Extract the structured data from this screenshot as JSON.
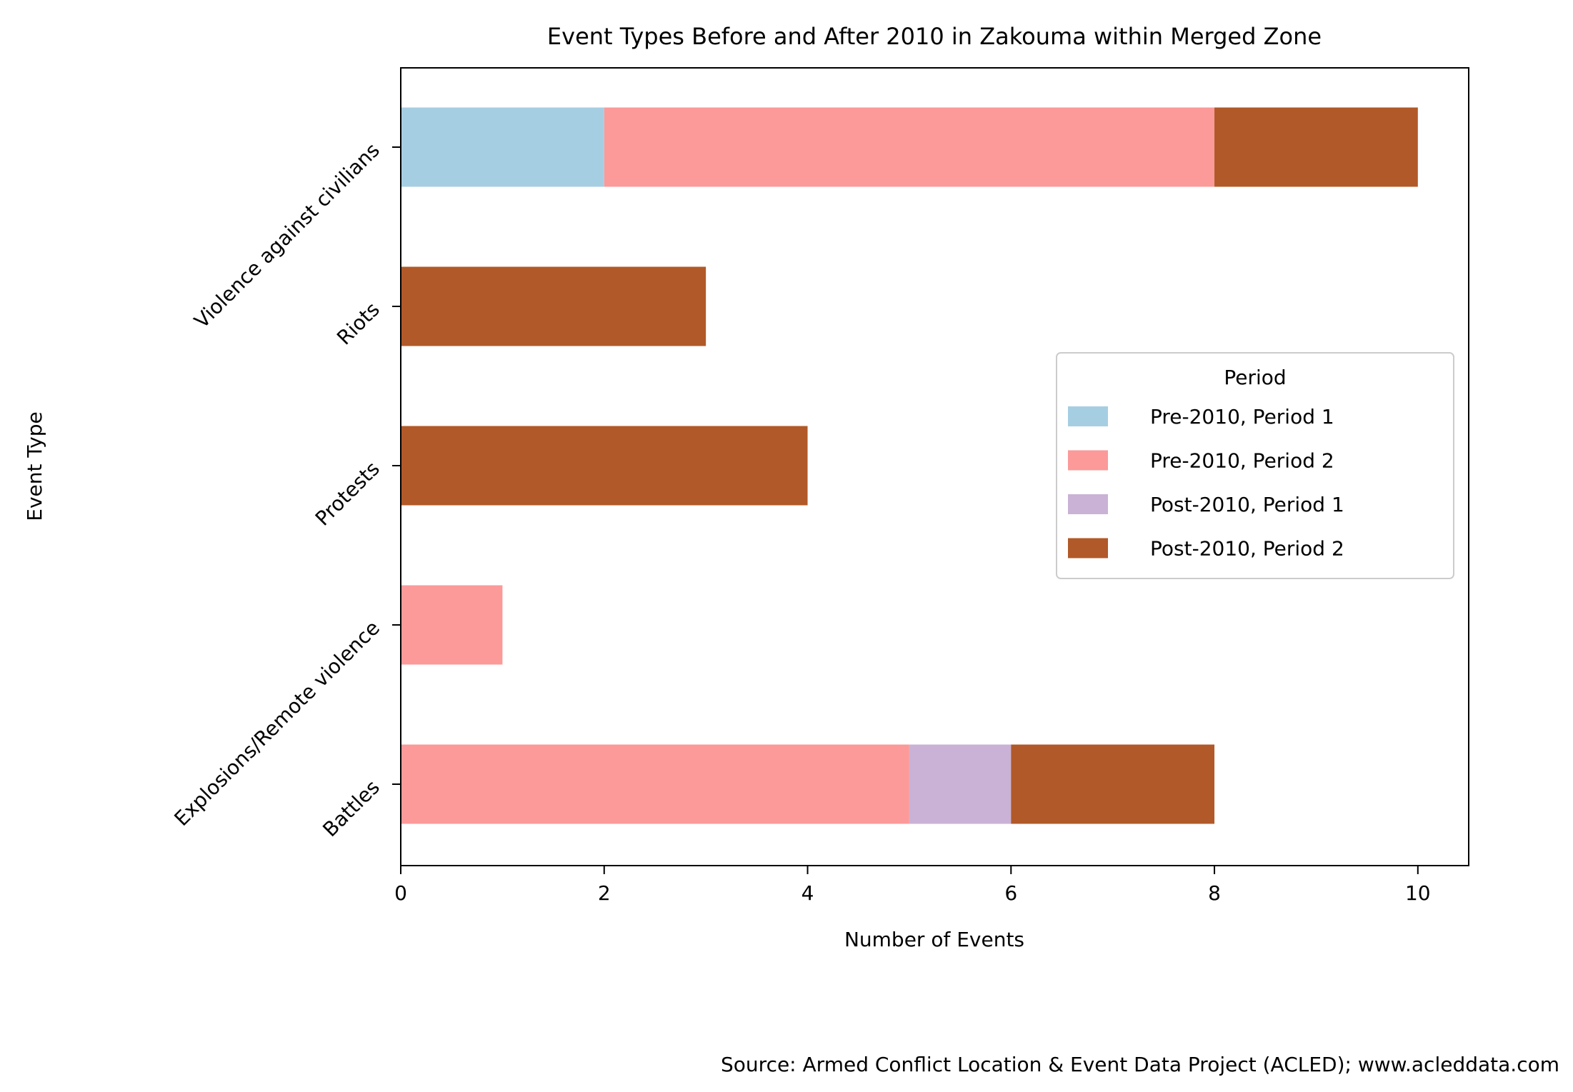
{
  "chart_data": {
    "type": "bar",
    "orientation": "horizontal",
    "stacked": true,
    "title": "Event Types Before and After 2010 in Zakouma within Merged Zone",
    "xlabel": "Number of Events",
    "ylabel": "Event Type",
    "xlim": [
      0,
      10.5
    ],
    "xticks": [
      0,
      2,
      4,
      6,
      8,
      10
    ],
    "categories": [
      "Battles",
      "Explosions/Remote violence",
      "Protests",
      "Riots",
      "Violence against civilians"
    ],
    "series": [
      {
        "name": "Pre-2010, Period 1",
        "color": "#a6cee3",
        "values": [
          0,
          0,
          0,
          0,
          2
        ]
      },
      {
        "name": "Pre-2010, Period 2",
        "color": "#fb9a99",
        "values": [
          5,
          1,
          0,
          0,
          6
        ]
      },
      {
        "name": "Post-2010, Period 1",
        "color": "#cab2d6",
        "values": [
          1,
          0,
          0,
          0,
          0
        ]
      },
      {
        "name": "Post-2010, Period 2",
        "color": "#b15928",
        "values": [
          2,
          0,
          4,
          3,
          2
        ]
      }
    ],
    "legend": {
      "title": "Period",
      "placement": "center-right"
    },
    "grid": false,
    "source": "Source: Armed Conflict Location & Event Data Project (ACLED); www.acleddata.com"
  }
}
